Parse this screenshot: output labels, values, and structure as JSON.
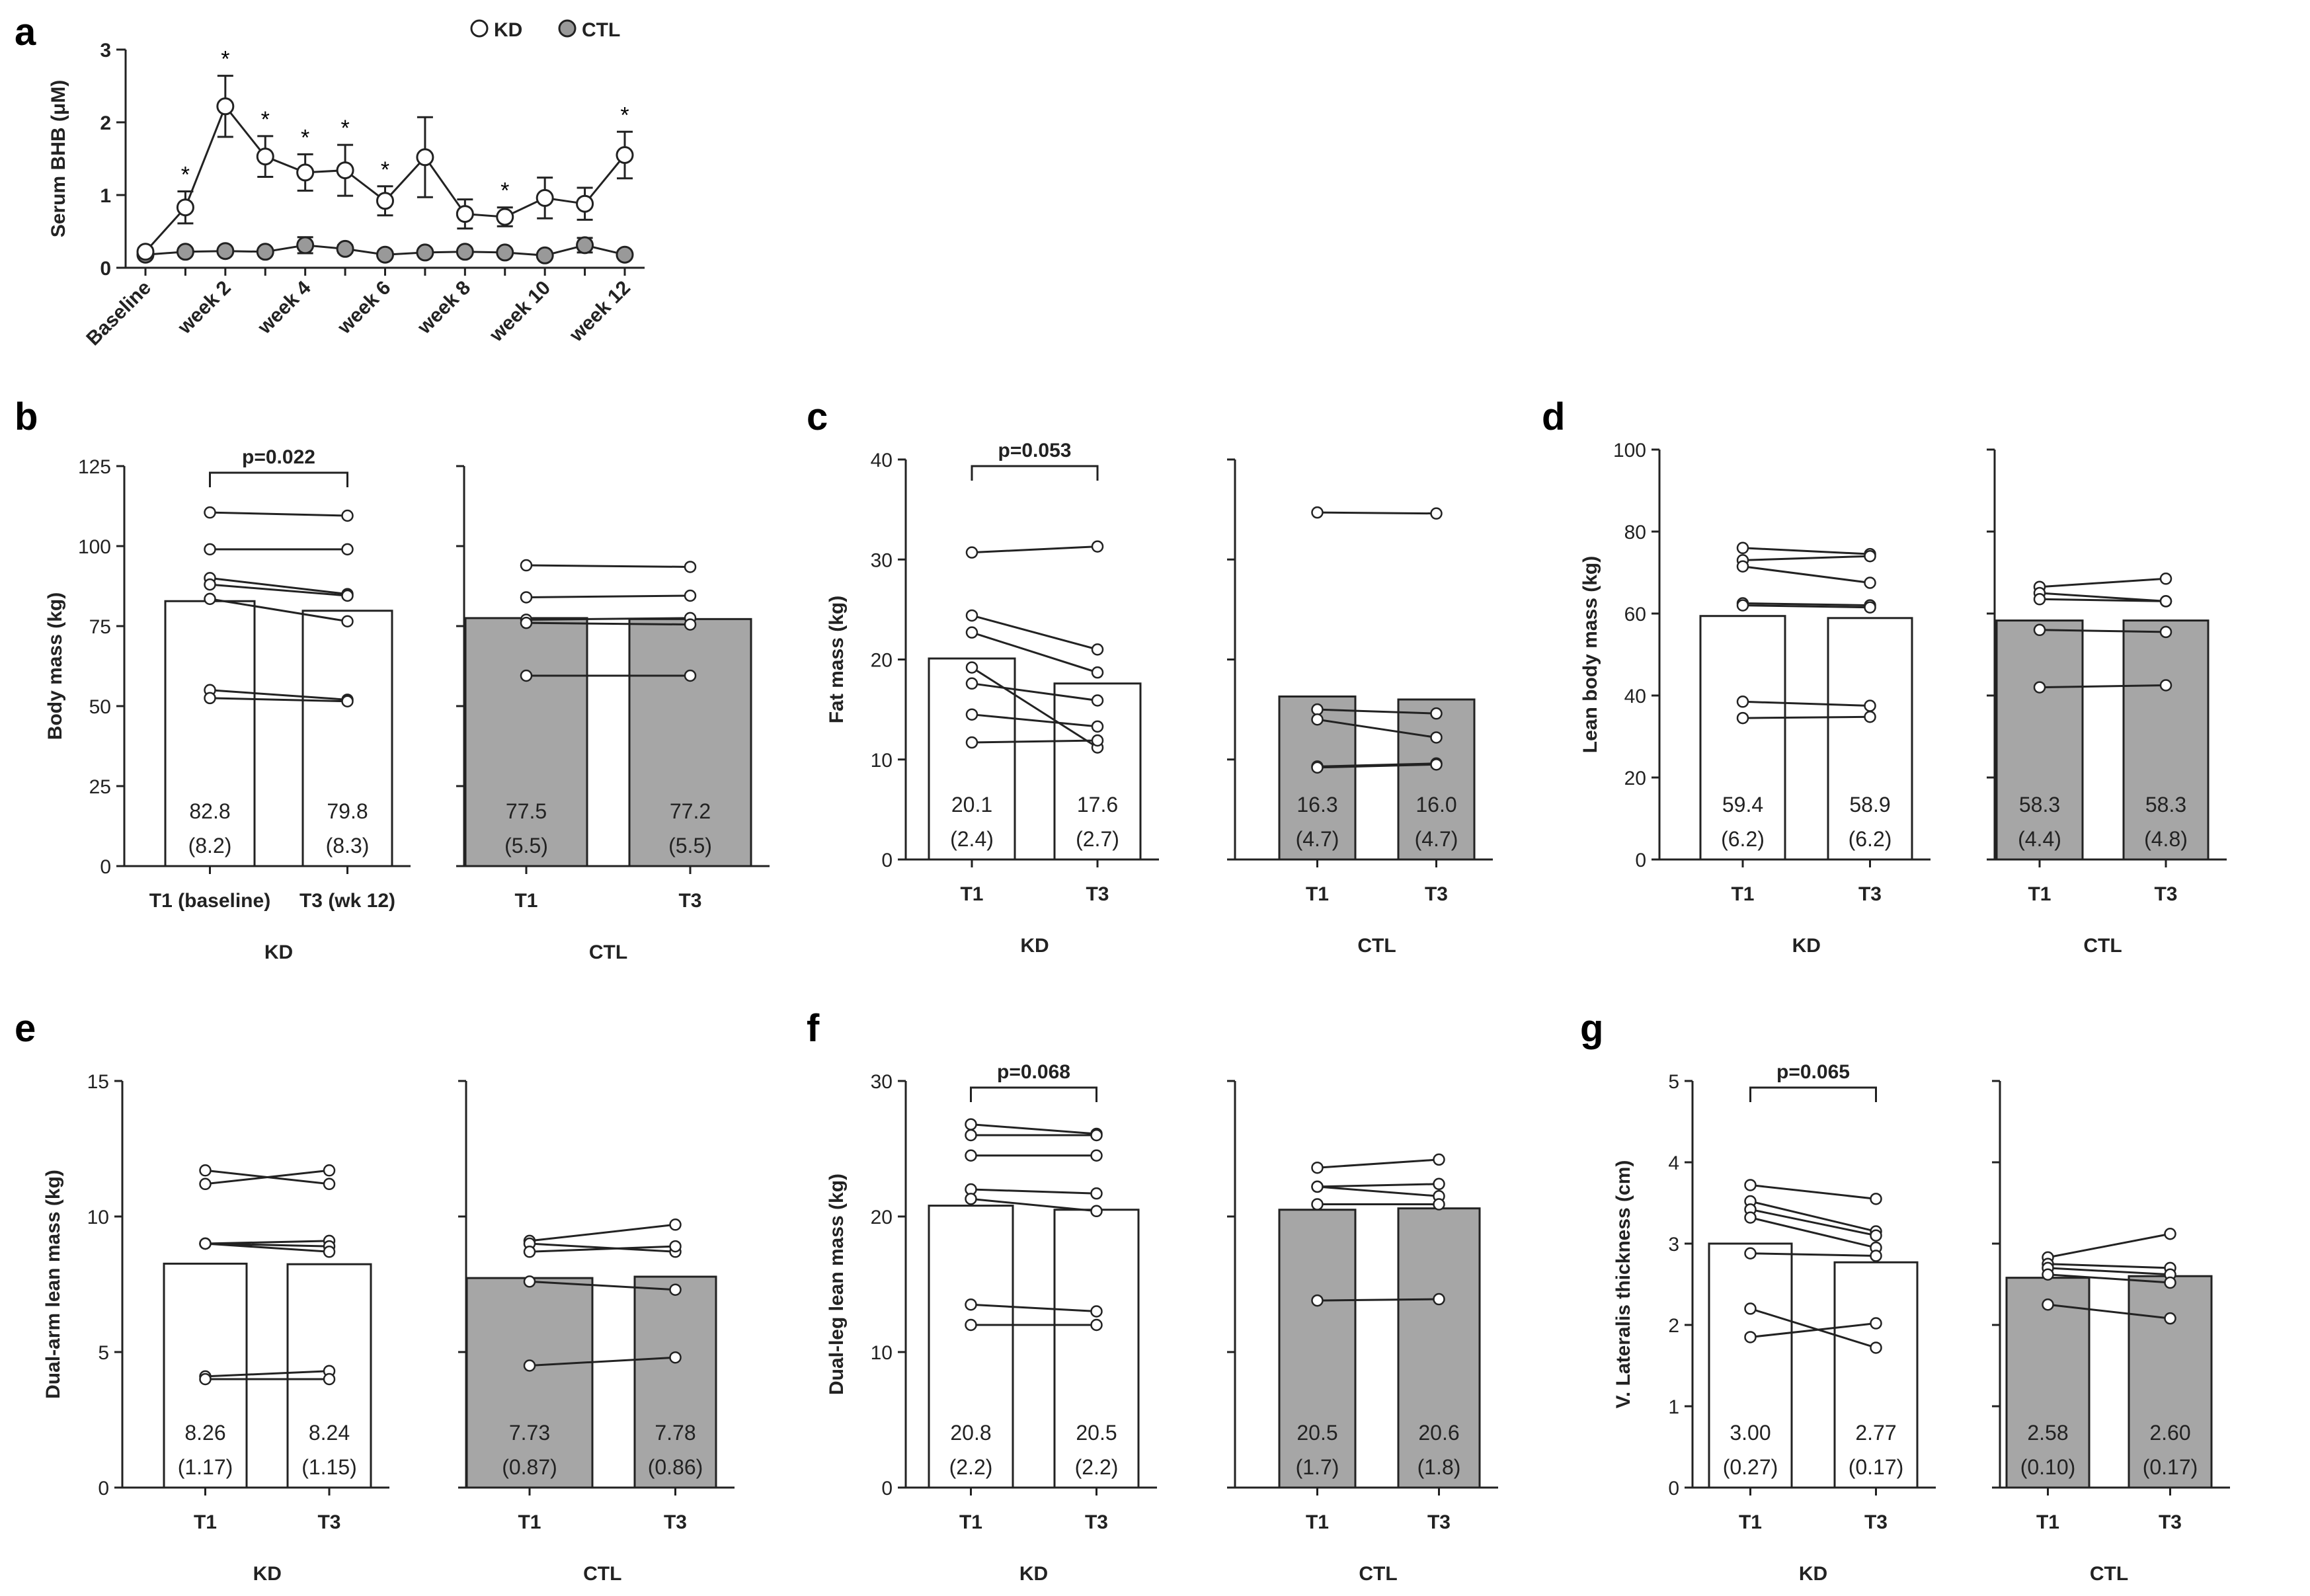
{
  "chart_data": [
    {
      "panel": "a",
      "type": "line",
      "ylabel": "Serum BHB (μM)",
      "ylim": [
        0,
        3
      ],
      "yticks": [
        0,
        1,
        2,
        3
      ],
      "categories": [
        "Baseline",
        "",
        "week 2",
        "",
        "week 4",
        "",
        "week 6",
        "",
        "week 8",
        "",
        "week 10",
        "",
        "week 12"
      ],
      "legend": {
        "position": "top",
        "entries": [
          "KD",
          "CTL"
        ]
      },
      "series": [
        {
          "name": "KD",
          "color": "#ffffff",
          "values": [
            0.22,
            0.83,
            2.22,
            1.53,
            1.31,
            1.34,
            0.92,
            1.52,
            0.74,
            0.7,
            0.96,
            0.88,
            1.55
          ],
          "errors": [
            0.05,
            0.22,
            0.42,
            0.28,
            0.25,
            0.35,
            0.2,
            0.55,
            0.2,
            0.13,
            0.28,
            0.22,
            0.32
          ],
          "significant": [
            false,
            true,
            true,
            true,
            true,
            true,
            true,
            false,
            false,
            true,
            false,
            false,
            true
          ]
        },
        {
          "name": "CTL",
          "color": "#999999",
          "values": [
            0.18,
            0.22,
            0.23,
            0.22,
            0.31,
            0.26,
            0.18,
            0.21,
            0.22,
            0.21,
            0.17,
            0.31,
            0.18
          ],
          "errors": [
            0.03,
            0.03,
            0.03,
            0.03,
            0.11,
            0.05,
            0.03,
            0.03,
            0.03,
            0.03,
            0.03,
            0.1,
            0.03
          ]
        }
      ]
    },
    {
      "panel": "b",
      "type": "bar",
      "ylabel": "Body mass (kg)",
      "ylim": [
        0,
        125
      ],
      "yticks": [
        0,
        25,
        50,
        75,
        100,
        125
      ],
      "groups": [
        {
          "name": "KD",
          "fill": "#ffffff",
          "categories": [
            "T1 (baseline)",
            "T3 (wk 12)"
          ],
          "means": [
            82.8,
            79.8
          ],
          "sds": [
            "(8.2)",
            "(8.3)"
          ],
          "mean_labels": [
            "82.8",
            "79.8"
          ],
          "pairs": [
            [
              110.5,
              109.5
            ],
            [
              99.0,
              99.0
            ],
            [
              90.0,
              85.0
            ],
            [
              88.0,
              84.5
            ],
            [
              83.5,
              76.5
            ],
            [
              55.0,
              52.0
            ],
            [
              52.5,
              51.5
            ]
          ],
          "pvalue": "p=0.022"
        },
        {
          "name": "CTL",
          "fill": "#a6a6a6",
          "categories": [
            "T1",
            "T3"
          ],
          "means": [
            77.5,
            77.2
          ],
          "sds": [
            "(5.5)",
            "(5.5)"
          ],
          "mean_labels": [
            "77.5",
            "77.2"
          ],
          "pairs": [
            [
              94.0,
              93.5
            ],
            [
              84.0,
              84.5
            ],
            [
              77.0,
              77.5
            ],
            [
              76.0,
              75.5
            ],
            [
              59.5,
              59.5
            ]
          ]
        }
      ]
    },
    {
      "panel": "c",
      "type": "bar",
      "ylabel": "Fat mass (kg)",
      "ylim": [
        0,
        40
      ],
      "yticks": [
        0,
        10,
        20,
        30,
        40
      ],
      "groups": [
        {
          "name": "KD",
          "fill": "#ffffff",
          "categories": [
            "T1",
            "T3"
          ],
          "means": [
            20.1,
            17.6
          ],
          "sds": [
            "(2.4)",
            "(2.7)"
          ],
          "mean_labels": [
            "20.1",
            "17.6"
          ],
          "pairs": [
            [
              30.7,
              31.3
            ],
            [
              24.4,
              21.0
            ],
            [
              22.7,
              18.7
            ],
            [
              19.2,
              11.2
            ],
            [
              17.6,
              15.9
            ],
            [
              14.5,
              13.3
            ],
            [
              11.7,
              11.9
            ]
          ],
          "pvalue": "p=0.053"
        },
        {
          "name": "CTL",
          "fill": "#a6a6a6",
          "categories": [
            "T1",
            "T3"
          ],
          "means": [
            16.3,
            16.0
          ],
          "sds": [
            "(4.7)",
            "(4.7)"
          ],
          "mean_labels": [
            "16.3",
            "16.0"
          ],
          "pairs": [
            [
              34.7,
              34.6
            ],
            [
              15.0,
              14.6
            ],
            [
              14.0,
              12.2
            ],
            [
              9.3,
              9.6
            ],
            [
              9.2,
              9.5
            ]
          ]
        }
      ]
    },
    {
      "panel": "d",
      "type": "bar",
      "ylabel": "Lean body mass (kg)",
      "ylim": [
        0,
        100
      ],
      "yticks": [
        0,
        20,
        40,
        60,
        80,
        100
      ],
      "groups": [
        {
          "name": "KD",
          "fill": "#ffffff",
          "categories": [
            "T1",
            "T3"
          ],
          "means": [
            59.4,
            58.9
          ],
          "sds": [
            "(6.2)",
            "(6.2)"
          ],
          "mean_labels": [
            "59.4",
            "58.9"
          ],
          "pairs": [
            [
              76.0,
              74.5
            ],
            [
              73.0,
              74.0
            ],
            [
              71.5,
              67.5
            ],
            [
              62.5,
              62.0
            ],
            [
              62.0,
              61.5
            ],
            [
              38.5,
              37.5
            ],
            [
              34.5,
              34.8
            ]
          ]
        },
        {
          "name": "CTL",
          "fill": "#a6a6a6",
          "categories": [
            "T1",
            "T3"
          ],
          "means": [
            58.3,
            58.3
          ],
          "sds": [
            "(4.4)",
            "(4.8)"
          ],
          "mean_labels": [
            "58.3",
            "58.3"
          ],
          "pairs": [
            [
              66.5,
              68.5
            ],
            [
              65.0,
              63.0
            ],
            [
              63.5,
              63.0
            ],
            [
              56.0,
              55.5
            ],
            [
              42.0,
              42.5
            ]
          ]
        }
      ]
    },
    {
      "panel": "e",
      "type": "bar",
      "ylabel": "Dual-arm lean mass (kg)",
      "ylim": [
        0,
        15
      ],
      "yticks": [
        0,
        5,
        10,
        15
      ],
      "groups": [
        {
          "name": "KD",
          "fill": "#ffffff",
          "categories": [
            "T1",
            "T3"
          ],
          "means": [
            8.26,
            8.24
          ],
          "sds": [
            "(1.17)",
            "(1.15)"
          ],
          "mean_labels": [
            "8.26",
            "8.24"
          ],
          "pairs": [
            [
              11.7,
              11.2
            ],
            [
              11.2,
              11.7
            ],
            [
              9.0,
              9.1
            ],
            [
              9.0,
              8.9
            ],
            [
              9.0,
              8.7
            ],
            [
              4.1,
              4.3
            ],
            [
              4.0,
              4.0
            ]
          ]
        },
        {
          "name": "CTL",
          "fill": "#a6a6a6",
          "categories": [
            "T1",
            "T3"
          ],
          "means": [
            7.73,
            7.78
          ],
          "sds": [
            "(0.87)",
            "(0.86)"
          ],
          "mean_labels": [
            "7.73",
            "7.78"
          ],
          "pairs": [
            [
              9.1,
              9.7
            ],
            [
              9.0,
              8.7
            ],
            [
              8.7,
              8.9
            ],
            [
              7.6,
              7.3
            ],
            [
              4.5,
              4.8
            ]
          ]
        }
      ]
    },
    {
      "panel": "f",
      "type": "bar",
      "ylabel": "Dual-leg lean mass (kg)",
      "ylim": [
        0,
        30
      ],
      "yticks": [
        0,
        10,
        20,
        30
      ],
      "groups": [
        {
          "name": "KD",
          "fill": "#ffffff",
          "categories": [
            "T1",
            "T3"
          ],
          "means": [
            20.8,
            20.5
          ],
          "sds": [
            "(2.2)",
            "(2.2)"
          ],
          "mean_labels": [
            "20.8",
            "20.5"
          ],
          "pairs": [
            [
              26.8,
              26.1
            ],
            [
              26.0,
              26.0
            ],
            [
              24.5,
              24.5
            ],
            [
              22.0,
              21.7
            ],
            [
              21.3,
              20.4
            ],
            [
              13.5,
              13.0
            ],
            [
              12.0,
              12.0
            ]
          ],
          "pvalue": "p=0.068"
        },
        {
          "name": "CTL",
          "fill": "#a6a6a6",
          "categories": [
            "T1",
            "T3"
          ],
          "means": [
            20.5,
            20.6
          ],
          "sds": [
            "(1.7)",
            "(1.8)"
          ],
          "mean_labels": [
            "20.5",
            "20.6"
          ],
          "pairs": [
            [
              23.6,
              24.2
            ],
            [
              22.2,
              22.4
            ],
            [
              22.2,
              21.5
            ],
            [
              20.9,
              20.9
            ],
            [
              13.8,
              13.9
            ]
          ]
        }
      ]
    },
    {
      "panel": "g",
      "type": "bar",
      "ylabel": "V. Lateralis thickness (cm)",
      "ylim": [
        0,
        5
      ],
      "yticks": [
        0,
        1,
        2,
        3,
        4,
        5
      ],
      "groups": [
        {
          "name": "KD",
          "fill": "#ffffff",
          "categories": [
            "T1",
            "T3"
          ],
          "means": [
            3.0,
            2.77
          ],
          "sds": [
            "(0.27)",
            "(0.17)"
          ],
          "mean_labels": [
            "3.00",
            "2.77"
          ],
          "pairs": [
            [
              3.72,
              3.55
            ],
            [
              3.52,
              3.15
            ],
            [
              3.42,
              3.1
            ],
            [
              3.32,
              2.95
            ],
            [
              2.88,
              2.85
            ],
            [
              2.2,
              1.72
            ],
            [
              1.85,
              2.02
            ]
          ],
          "pvalue": "p=0.065"
        },
        {
          "name": "CTL",
          "fill": "#a6a6a6",
          "categories": [
            "T1",
            "T3"
          ],
          "means": [
            2.58,
            2.6
          ],
          "sds": [
            "(0.10)",
            "(0.17)"
          ],
          "mean_labels": [
            "2.58",
            "2.60"
          ],
          "pairs": [
            [
              2.83,
              3.12
            ],
            [
              2.75,
              2.7
            ],
            [
              2.7,
              2.62
            ],
            [
              2.62,
              2.52
            ],
            [
              2.25,
              2.08
            ]
          ]
        }
      ]
    }
  ]
}
